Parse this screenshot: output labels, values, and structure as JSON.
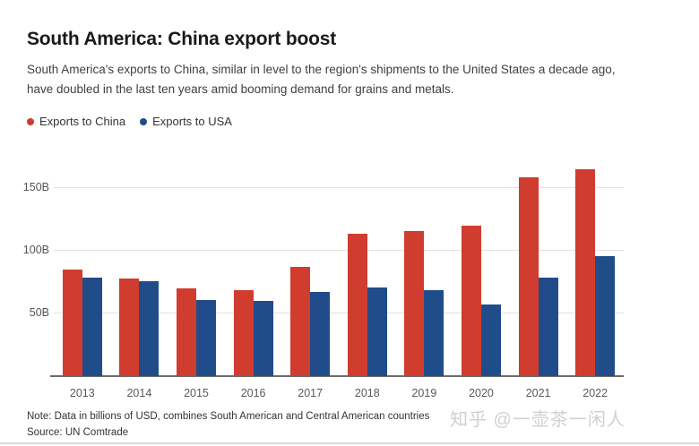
{
  "header": {
    "title": "South America: China export boost",
    "subtitle_lines": [
      "South America's exports to China, similar in level to the region's shipments to the United States a decade ago,",
      "have doubled in the last ten years amid booming demand for grains and metals."
    ]
  },
  "legend": {
    "items": [
      {
        "label": "Exports to China",
        "color": "#d03c2e"
      },
      {
        "label": "Exports to USA",
        "color": "#204c8a"
      }
    ]
  },
  "chart_data": {
    "type": "bar",
    "title": "South America: China export boost",
    "categories": [
      "2013",
      "2014",
      "2015",
      "2016",
      "2017",
      "2018",
      "2019",
      "2020",
      "2021",
      "2022"
    ],
    "series": [
      {
        "name": "Exports to China",
        "color": "#d03c2e",
        "values": [
          85,
          78,
          70,
          69,
          87,
          114,
          116,
          120,
          159,
          165
        ]
      },
      {
        "name": "Exports to USA",
        "color": "#204c8a",
        "values": [
          79,
          76,
          61,
          60,
          67,
          71,
          69,
          57,
          79,
          96
        ]
      }
    ],
    "unit": "billions USD",
    "xlabel": "",
    "ylabel": "",
    "yticks": [
      {
        "value": 50,
        "label": "50B"
      },
      {
        "value": 100,
        "label": "100B"
      },
      {
        "value": 150,
        "label": "150B"
      }
    ],
    "ylim": [
      0,
      186
    ],
    "grid": true,
    "legend_position": "top-left"
  },
  "footer": {
    "note": "Note: Data in billions of USD, combines South American and Central American countries",
    "source": "Source: UN Comtrade",
    "watermark": "知乎 @一壶茶一闲人"
  }
}
